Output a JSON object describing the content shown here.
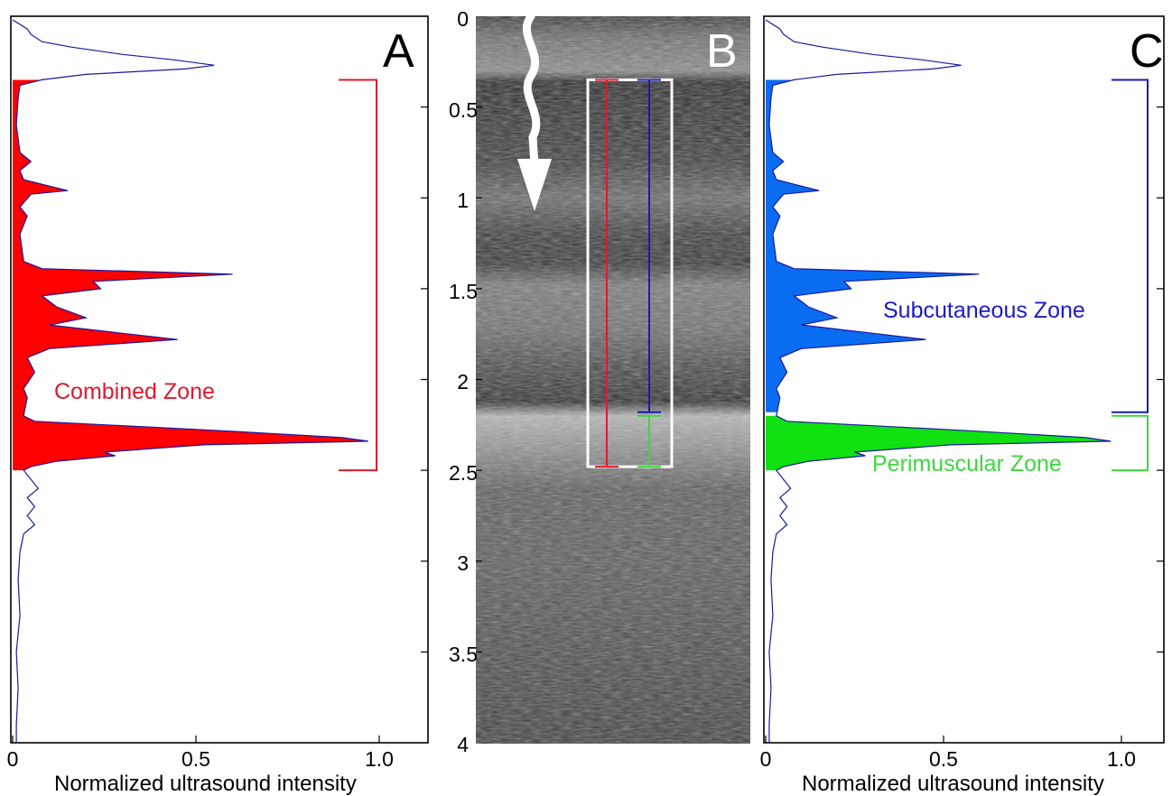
{
  "figure": {
    "panels": [
      {
        "id": "A",
        "panel_label": "A",
        "xlabel": "Normalized ultrasound intensity",
        "xticks": [
          "0",
          "0.5",
          "1.0"
        ],
        "zone_label": "Combined Zone"
      },
      {
        "id": "B",
        "panel_label": "B",
        "yticks": [
          "0",
          "0.5",
          "1",
          "1.5",
          "2",
          "2.5",
          "3",
          "3.5",
          "4"
        ]
      },
      {
        "id": "C",
        "panel_label": "C",
        "xlabel": "Normalized ultrasound intensity",
        "xticks": [
          "0",
          "0.5",
          "1.0"
        ],
        "zone_labels": [
          "Subcutaneous Zone",
          "Perimuscular Zone"
        ]
      }
    ]
  },
  "colors": {
    "profile_line": "#1a1aa0",
    "combined": "#ff0000",
    "combined_label": "#e0192e",
    "subcutaneous": "#0a6cf0",
    "subcutaneous_label": "#1a1acc",
    "subcutaneous_bracket": "#1a1ab4",
    "perimuscular": "#11e011",
    "perimuscular_label": "#3cd83c",
    "roi_box": "#ffffff",
    "arrow": "#ffffff"
  },
  "chart_data": [
    {
      "type": "area",
      "panel": "A",
      "orientation": "vertical",
      "ylim": [
        0,
        4
      ],
      "xlim": [
        0,
        1.13
      ],
      "xticks": [
        0,
        0.5,
        1.0
      ],
      "yticks": [
        0.5,
        1,
        1.5,
        2,
        2.5,
        3,
        3.5
      ],
      "series": [
        {
          "role": "profile",
          "points": [
            [
              0,
              0.02
            ],
            [
              0.04,
              0.07
            ],
            [
              0.05,
              0.1
            ],
            [
              0.08,
              0.14
            ],
            [
              0.16,
              0.17
            ],
            [
              0.3,
              0.21
            ],
            [
              0.44,
              0.24
            ],
            [
              0.55,
              0.27
            ],
            [
              0.47,
              0.29
            ],
            [
              0.2,
              0.32
            ],
            [
              0.08,
              0.35
            ],
            [
              0.02,
              0.38
            ],
            [
              0.015,
              0.45
            ],
            [
              0.01,
              0.6
            ],
            [
              0.02,
              0.75
            ],
            [
              0.05,
              0.8
            ],
            [
              0.02,
              0.85
            ],
            [
              0.03,
              0.9
            ],
            [
              0.15,
              0.96
            ],
            [
              0.05,
              0.98
            ],
            [
              0.02,
              1.05
            ],
            [
              0.04,
              1.1
            ],
            [
              0.02,
              1.2
            ],
            [
              0.03,
              1.35
            ],
            [
              0.08,
              1.39
            ],
            [
              0.6,
              1.42
            ],
            [
              0.22,
              1.46
            ],
            [
              0.24,
              1.5
            ],
            [
              0.08,
              1.54
            ],
            [
              0.12,
              1.6
            ],
            [
              0.2,
              1.66
            ],
            [
              0.1,
              1.7
            ],
            [
              0.45,
              1.78
            ],
            [
              0.1,
              1.83
            ],
            [
              0.04,
              1.88
            ],
            [
              0.06,
              1.96
            ],
            [
              0.03,
              2.05
            ],
            [
              0.04,
              2.1
            ],
            [
              0.03,
              2.2
            ],
            [
              0.06,
              2.23
            ],
            [
              0.55,
              2.28
            ],
            [
              0.9,
              2.32
            ],
            [
              0.97,
              2.34
            ],
            [
              0.52,
              2.36
            ],
            [
              0.25,
              2.4
            ],
            [
              0.28,
              2.42
            ],
            [
              0.12,
              2.45
            ],
            [
              0.05,
              2.48
            ],
            [
              0.03,
              2.5
            ],
            [
              0.05,
              2.55
            ],
            [
              0.07,
              2.6
            ],
            [
              0.04,
              2.65
            ],
            [
              0.06,
              2.7
            ],
            [
              0.04,
              2.75
            ],
            [
              0.06,
              2.8
            ],
            [
              0.03,
              2.85
            ],
            [
              0.02,
              2.95
            ],
            [
              0.015,
              3.1
            ],
            [
              0.02,
              3.3
            ],
            [
              0.01,
              3.5
            ],
            [
              0.015,
              3.7
            ],
            [
              0.01,
              3.9
            ],
            [
              0.01,
              4.0
            ]
          ]
        },
        {
          "name": "Combined Zone",
          "range": [
            0.35,
            2.5
          ]
        }
      ]
    },
    {
      "type": "heatmap",
      "panel": "B",
      "orientation": "vertical",
      "ylim": [
        0,
        4
      ],
      "yticks": [
        0,
        0.5,
        1,
        1.5,
        2,
        2.5,
        3,
        3.5,
        4
      ],
      "roi_depth": [
        0.35,
        2.48
      ],
      "bars": [
        {
          "zone": "combined",
          "range": [
            0.35,
            2.48
          ]
        },
        {
          "zone": "subcutaneous",
          "range": [
            0.35,
            2.18
          ]
        },
        {
          "zone": "perimuscular",
          "range": [
            2.2,
            2.48
          ]
        }
      ]
    },
    {
      "type": "area",
      "panel": "C",
      "orientation": "vertical",
      "ylim": [
        0,
        4
      ],
      "xlim": [
        0,
        1.13
      ],
      "xticks": [
        0,
        0.5,
        1.0
      ],
      "yticks": [
        0.5,
        1,
        1.5,
        2,
        2.5,
        3,
        3.5
      ],
      "series": [
        {
          "name": "Subcutaneous Zone",
          "range": [
            0.35,
            2.18
          ]
        },
        {
          "name": "Perimuscular Zone",
          "range": [
            2.2,
            2.5
          ]
        }
      ]
    }
  ]
}
